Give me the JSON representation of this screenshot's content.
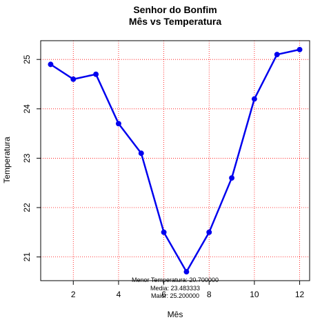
{
  "chart_data": {
    "type": "line",
    "title": "Senhor do Bonfim",
    "subtitle": "Mês vs Temperatura",
    "xlabel": "Mês",
    "ylabel": "Temperatura",
    "x": [
      1,
      2,
      3,
      4,
      5,
      6,
      7,
      8,
      9,
      10,
      11,
      12
    ],
    "values": [
      24.9,
      24.6,
      24.7,
      23.7,
      23.1,
      21.5,
      20.7,
      21.5,
      22.6,
      24.2,
      25.1,
      25.2
    ],
    "xlim": [
      0.56,
      12.44
    ],
    "ylim": [
      20.52,
      25.38
    ],
    "xticks": [
      2,
      4,
      6,
      8,
      10,
      12
    ],
    "yticks": [
      21,
      22,
      23,
      24,
      25
    ],
    "grid": true,
    "grid_color": "#ff0000",
    "line_color": "#0000ee",
    "annotations": [
      "Menor Temperatura: 20.700000",
      "Media: 23.483333",
      "Maior: 25.200000"
    ]
  }
}
